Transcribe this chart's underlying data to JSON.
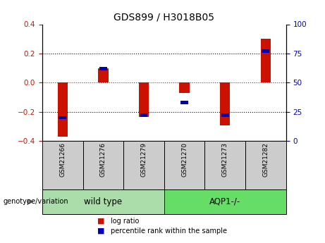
{
  "title": "GDS899 / H3018B05",
  "samples": [
    "GSM21266",
    "GSM21276",
    "GSM21279",
    "GSM21270",
    "GSM21273",
    "GSM21282"
  ],
  "log_ratios": [
    -0.37,
    0.1,
    -0.235,
    -0.07,
    -0.295,
    0.3
  ],
  "percentile_ranks": [
    20,
    62,
    22,
    33,
    22,
    77
  ],
  "bar_color": "#cc1100",
  "percentile_color": "#0000bb",
  "groups": [
    {
      "label": "wild type",
      "n_samples": 3,
      "color": "#aaddaa"
    },
    {
      "label": "AQP1-/-",
      "n_samples": 3,
      "color": "#66dd66"
    }
  ],
  "ylim_left": [
    -0.4,
    0.4
  ],
  "ylim_right": [
    0,
    100
  ],
  "yticks_left": [
    -0.4,
    -0.2,
    0.0,
    0.2,
    0.4
  ],
  "yticks_right": [
    0,
    25,
    50,
    75,
    100
  ],
  "dotted_lines": [
    -0.2,
    0.2
  ],
  "zero_line_color": "#cc1100",
  "grid_color": "black",
  "bar_width": 0.25,
  "sample_box_color": "#cccccc",
  "genotype_label": "genotype/variation",
  "legend_items": [
    {
      "label": "log ratio",
      "color": "#cc1100"
    },
    {
      "label": "percentile rank within the sample",
      "color": "#0000bb"
    }
  ],
  "left_color": "#cc1100",
  "right_color": "#0000bb"
}
